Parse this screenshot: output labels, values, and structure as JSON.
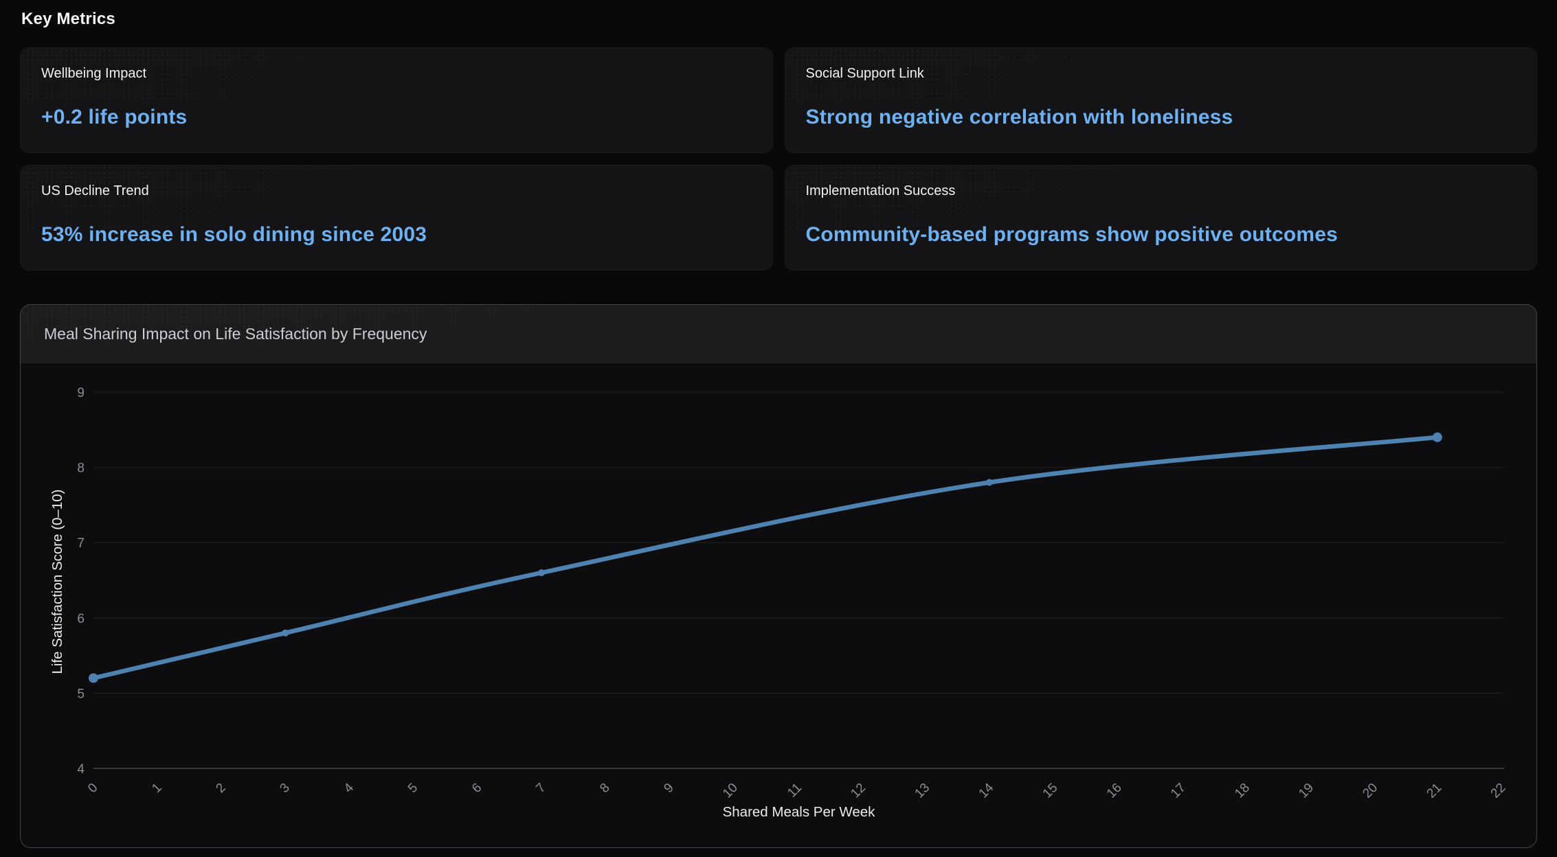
{
  "page": {
    "title": "Key Metrics"
  },
  "accent_color": "#6db1f2",
  "cards": [
    {
      "label": "Wellbeing Impact",
      "value": "+0.2 life points"
    },
    {
      "label": "Social Support Link",
      "value": "Strong negative correlation with loneliness"
    },
    {
      "label": "US Decline Trend",
      "value": "53% increase in solo dining since 2003"
    },
    {
      "label": "Implementation Success",
      "value": "Community-based programs show positive outcomes"
    }
  ],
  "chart_data": {
    "type": "line",
    "title": "Meal Sharing Impact on Life Satisfaction by Frequency",
    "xlabel": "Shared Meals Per Week",
    "ylabel": "Life Satisfaction Score (0–10)",
    "x": [
      0,
      3,
      7,
      14,
      21
    ],
    "y": [
      5.2,
      5.8,
      6.6,
      7.8,
      8.4
    ],
    "xlim": [
      0,
      22
    ],
    "ylim": [
      4,
      9
    ],
    "x_ticks": [
      0,
      1,
      2,
      3,
      4,
      5,
      6,
      7,
      8,
      9,
      10,
      11,
      12,
      13,
      14,
      15,
      16,
      17,
      18,
      19,
      20,
      21,
      22
    ],
    "y_ticks": [
      4,
      5,
      6,
      7,
      8,
      9
    ],
    "smooth": true,
    "grid": true,
    "legend": "none",
    "line_color": "#4d82b1",
    "grid_color": "#1e1f22",
    "axis_line_color": "#45464b",
    "tick_label_color": "#8b8e93",
    "axis_name_color": "#e9ebed"
  }
}
